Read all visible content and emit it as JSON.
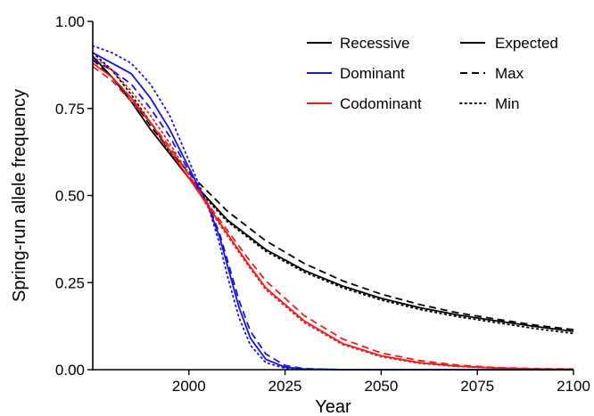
{
  "chart_data": {
    "type": "line",
    "title": "",
    "xlabel": "Year",
    "ylabel": "Spring-run allele frequency",
    "xlim": [
      1975,
      2100
    ],
    "ylim": [
      0,
      1
    ],
    "xticks": [
      2000,
      2025,
      2050,
      2075,
      2100
    ],
    "xtick_labels": [
      "2000",
      "2025",
      "2050",
      "2075",
      "2100"
    ],
    "yticks": [
      0,
      0.25,
      0.5,
      0.75,
      1
    ],
    "ytick_labels": [
      "0.00",
      "0.25",
      "0.50",
      "0.75",
      "1.00"
    ],
    "grid": false,
    "legend_position": "top-right",
    "legend": {
      "color_entries": [
        {
          "label": "Recessive",
          "color": "#000000"
        },
        {
          "label": "Dominant",
          "color": "#1515e0"
        },
        {
          "label": "Codominant",
          "color": "#ee1c1c"
        }
      ],
      "style_entries": [
        {
          "label": "Expected",
          "dash": "solid"
        },
        {
          "label": "Max",
          "dash": "dashed"
        },
        {
          "label": "Min",
          "dash": "dotted"
        }
      ]
    },
    "series": [
      {
        "name": "Recessive Expected",
        "color": "#000000",
        "dash": "solid",
        "x": [
          1975,
          1980,
          1985,
          1990,
          1995,
          2000,
          2005,
          2010,
          2020,
          2030,
          2040,
          2050,
          2060,
          2070,
          2080,
          2090,
          2100
        ],
        "y": [
          0.9,
          0.84,
          0.77,
          0.69,
          0.62,
          0.55,
          0.49,
          0.43,
          0.345,
          0.285,
          0.24,
          0.205,
          0.178,
          0.157,
          0.14,
          0.124,
          0.11
        ]
      },
      {
        "name": "Recessive Max",
        "color": "#000000",
        "dash": "dashed",
        "x": [
          1975,
          1980,
          1985,
          1990,
          1995,
          2000,
          2005,
          2010,
          2020,
          2030,
          2040,
          2050,
          2060,
          2070,
          2080,
          2090,
          2100
        ],
        "y": [
          0.89,
          0.84,
          0.78,
          0.7,
          0.63,
          0.565,
          0.51,
          0.455,
          0.37,
          0.305,
          0.255,
          0.217,
          0.187,
          0.163,
          0.145,
          0.128,
          0.115
        ]
      },
      {
        "name": "Recessive Min",
        "color": "#000000",
        "dash": "dotted",
        "x": [
          1975,
          1980,
          1985,
          1990,
          1995,
          2000,
          2005,
          2010,
          2020,
          2030,
          2040,
          2050,
          2060,
          2070,
          2080,
          2090,
          2100
        ],
        "y": [
          0.91,
          0.86,
          0.79,
          0.71,
          0.625,
          0.55,
          0.485,
          0.425,
          0.34,
          0.28,
          0.235,
          0.2,
          0.173,
          0.152,
          0.135,
          0.118,
          0.104
        ]
      },
      {
        "name": "Dominant Expected",
        "color": "#1515e0",
        "dash": "solid",
        "x": [
          1975,
          1980,
          1985,
          1990,
          1995,
          2000,
          2005,
          2008,
          2010,
          2013,
          2016,
          2020,
          2025,
          2030,
          2040,
          2050,
          2100
        ],
        "y": [
          0.91,
          0.88,
          0.85,
          0.78,
          0.69,
          0.58,
          0.47,
          0.38,
          0.3,
          0.18,
          0.09,
          0.03,
          0.007,
          0.002,
          0,
          0,
          0
        ]
      },
      {
        "name": "Dominant Max",
        "color": "#1515e0",
        "dash": "dashed",
        "x": [
          1975,
          1980,
          1985,
          1990,
          1995,
          2000,
          2005,
          2008,
          2010,
          2013,
          2016,
          2020,
          2025,
          2030,
          2040,
          2050,
          2100
        ],
        "y": [
          0.89,
          0.86,
          0.82,
          0.75,
          0.67,
          0.57,
          0.475,
          0.39,
          0.315,
          0.2,
          0.11,
          0.045,
          0.012,
          0.003,
          0,
          0,
          0
        ]
      },
      {
        "name": "Dominant Min",
        "color": "#1515e0",
        "dash": "dotted",
        "x": [
          1975,
          1980,
          1985,
          1990,
          1995,
          2000,
          2005,
          2008,
          2010,
          2013,
          2016,
          2020,
          2025,
          2030,
          2040,
          2050,
          2100
        ],
        "y": [
          0.93,
          0.91,
          0.88,
          0.82,
          0.73,
          0.6,
          0.47,
          0.36,
          0.27,
          0.15,
          0.07,
          0.02,
          0.004,
          0.001,
          0,
          0,
          0
        ]
      },
      {
        "name": "Codominant Expected",
        "color": "#ee1c1c",
        "dash": "solid",
        "x": [
          1975,
          1980,
          1985,
          1990,
          1995,
          2000,
          2005,
          2010,
          2015,
          2020,
          2030,
          2040,
          2050,
          2060,
          2070,
          2080,
          2090,
          2100
        ],
        "y": [
          0.88,
          0.84,
          0.78,
          0.71,
          0.63,
          0.55,
          0.47,
          0.39,
          0.31,
          0.235,
          0.14,
          0.075,
          0.04,
          0.02,
          0.01,
          0.005,
          0.002,
          0.001
        ]
      },
      {
        "name": "Codominant Max",
        "color": "#ee1c1c",
        "dash": "dashed",
        "x": [
          1975,
          1980,
          1985,
          1990,
          1995,
          2000,
          2005,
          2010,
          2015,
          2020,
          2030,
          2040,
          2050,
          2060,
          2070,
          2080,
          2090,
          2100
        ],
        "y": [
          0.87,
          0.83,
          0.77,
          0.71,
          0.64,
          0.56,
          0.475,
          0.4,
          0.325,
          0.255,
          0.155,
          0.088,
          0.048,
          0.026,
          0.013,
          0.006,
          0.003,
          0.002
        ]
      },
      {
        "name": "Codominant Min",
        "color": "#ee1c1c",
        "dash": "dotted",
        "x": [
          1975,
          1980,
          1985,
          1990,
          1995,
          2000,
          2005,
          2010,
          2015,
          2020,
          2030,
          2040,
          2050,
          2060,
          2070,
          2080,
          2090,
          2100
        ],
        "y": [
          0.9,
          0.86,
          0.8,
          0.73,
          0.65,
          0.56,
          0.465,
          0.385,
          0.305,
          0.23,
          0.135,
          0.072,
          0.037,
          0.018,
          0.009,
          0.004,
          0.002,
          0.001
        ]
      }
    ]
  }
}
